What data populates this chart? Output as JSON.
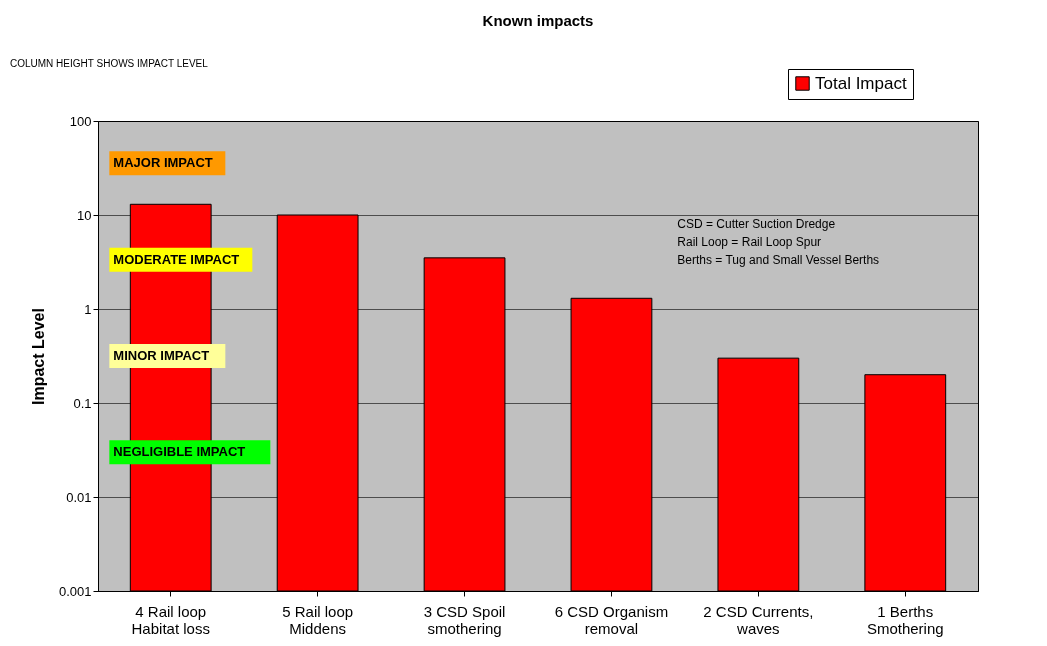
{
  "chart_data": {
    "type": "bar",
    "title": "Known impacts",
    "ylabel": "Impact Level",
    "categories": [
      "4 Rail loop Habitat loss",
      "5 Rail loop Middens",
      "3 CSD Spoil smothering",
      "6 CSD Organism removal",
      "2 CSD Currents, waves",
      "1 Berths Smothering"
    ],
    "series": [
      {
        "name": "Total Impact",
        "color": "#ff0000",
        "values": [
          13,
          10,
          3.5,
          1.3,
          0.3,
          0.2
        ]
      }
    ],
    "log": true,
    "ylim": [
      0.001,
      100
    ],
    "yticks": [
      0.001,
      0.01,
      0.1,
      1,
      10,
      100
    ],
    "grid": "y",
    "legend": "top right",
    "annotations": [
      "COLUMN HEIGHT SHOWS IMPACT LEVEL",
      "MAJOR IMPACT",
      "MODERATE IMPACT",
      "MINOR IMPACT",
      "NEGLIGIBLE IMPACT",
      "CSD = Cutter Suction Dredge\nRail Loop = Rail Loop Spur\nBerths = Tug and Small Vessel Berths"
    ]
  }
}
